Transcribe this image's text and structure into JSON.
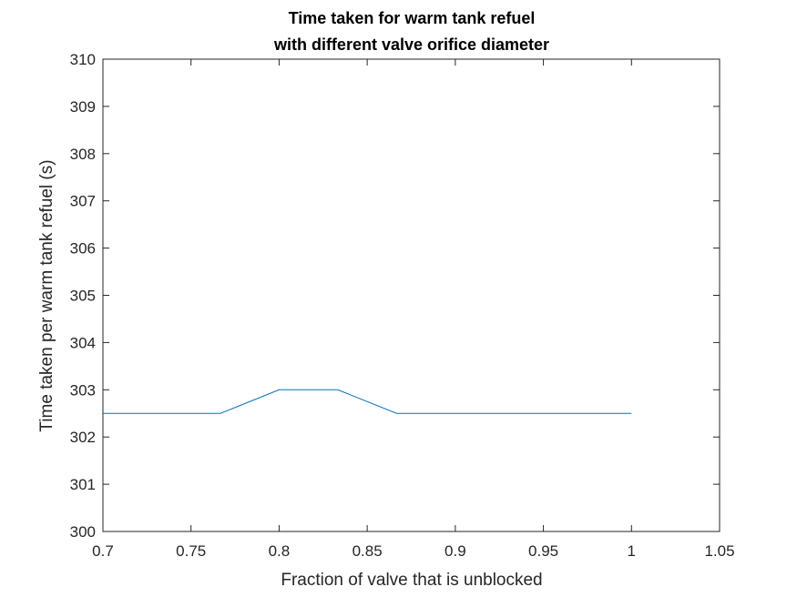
{
  "chart_data": {
    "type": "line",
    "title": [
      "Time taken for warm tank refuel",
      "with different valve orifice diameter"
    ],
    "xlabel": "Fraction of valve that is unblocked",
    "ylabel": "Time taken per warm tank refuel (s)",
    "xlim": [
      0.7,
      1.05
    ],
    "ylim": [
      300,
      310
    ],
    "xticks": [
      "0.7",
      "0.75",
      "0.8",
      "0.85",
      "0.9",
      "0.95",
      "1",
      "1.05"
    ],
    "yticks": [
      "300",
      "301",
      "302",
      "303",
      "304",
      "305",
      "306",
      "307",
      "308",
      "309",
      "310"
    ],
    "grid": false,
    "series": [
      {
        "color": "#0072BD",
        "x": [
          0.7,
          0.7333,
          0.7667,
          0.8,
          0.8333,
          0.8667,
          0.9,
          0.9333,
          0.9667,
          1.0
        ],
        "y": [
          302.5,
          302.5,
          302.5,
          303.0,
          303.0,
          302.5,
          302.5,
          302.5,
          302.5,
          302.5
        ]
      }
    ]
  }
}
